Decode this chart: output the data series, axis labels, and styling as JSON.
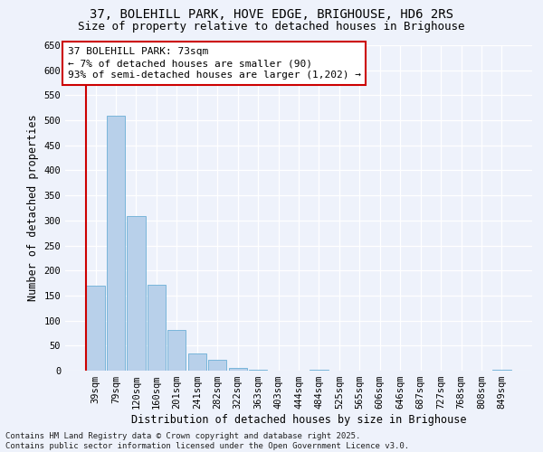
{
  "title_line1": "37, BOLEHILL PARK, HOVE EDGE, BRIGHOUSE, HD6 2RS",
  "title_line2": "Size of property relative to detached houses in Brighouse",
  "xlabel": "Distribution of detached houses by size in Brighouse",
  "ylabel": "Number of detached properties",
  "categories": [
    "39sqm",
    "79sqm",
    "120sqm",
    "160sqm",
    "201sqm",
    "241sqm",
    "282sqm",
    "322sqm",
    "363sqm",
    "403sqm",
    "444sqm",
    "484sqm",
    "525sqm",
    "565sqm",
    "606sqm",
    "646sqm",
    "687sqm",
    "727sqm",
    "768sqm",
    "808sqm",
    "849sqm"
  ],
  "values": [
    170,
    510,
    308,
    172,
    82,
    34,
    22,
    5,
    1,
    0,
    0,
    1,
    0,
    0,
    0,
    0,
    0,
    0,
    0,
    0,
    2
  ],
  "bar_color": "#b8d0ea",
  "bar_edge_color": "#6aaed6",
  "marker_color": "#cc0000",
  "annotation_line1": "37 BOLEHILL PARK: 73sqm",
  "annotation_line2": "← 7% of detached houses are smaller (90)",
  "annotation_line3": "93% of semi-detached houses are larger (1,202) →",
  "annotation_box_color": "#ffffff",
  "annotation_box_edge": "#cc0000",
  "ylim": [
    0,
    650
  ],
  "yticks": [
    0,
    50,
    100,
    150,
    200,
    250,
    300,
    350,
    400,
    450,
    500,
    550,
    600,
    650
  ],
  "footer_line1": "Contains HM Land Registry data © Crown copyright and database right 2025.",
  "footer_line2": "Contains public sector information licensed under the Open Government Licence v3.0.",
  "bg_color": "#eef2fb",
  "grid_color": "#ffffff",
  "title_fontsize": 10,
  "subtitle_fontsize": 9,
  "axis_label_fontsize": 8.5,
  "tick_fontsize": 7.5,
  "annotation_fontsize": 8,
  "footer_fontsize": 6.5
}
